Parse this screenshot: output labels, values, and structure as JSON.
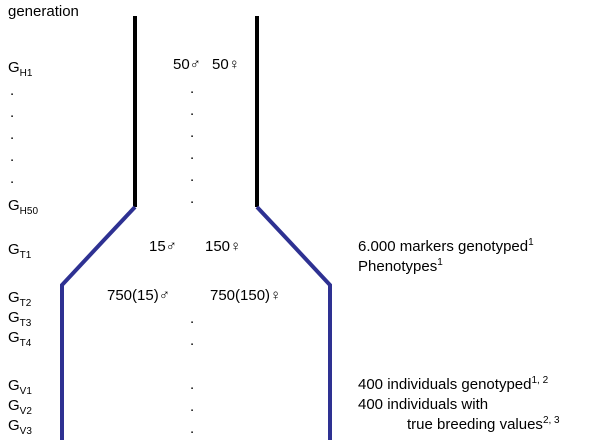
{
  "header": {
    "label": "generation"
  },
  "generations": {
    "h1": {
      "base": "G",
      "sub": "H1"
    },
    "h50": {
      "base": "G",
      "sub": "H50"
    },
    "t1": {
      "base": "G",
      "sub": "T1"
    },
    "t2": {
      "base": "G",
      "sub": "T2"
    },
    "t3": {
      "base": "G",
      "sub": "T3"
    },
    "t4": {
      "base": "G",
      "sub": "T4"
    },
    "v1": {
      "base": "G",
      "sub": "V1"
    },
    "v2": {
      "base": "G",
      "sub": "V2"
    },
    "v3": {
      "base": "G",
      "sub": "V3"
    }
  },
  "ellipsis_dot": ".",
  "population": {
    "h1": {
      "male": "50♂",
      "female": "50♀"
    },
    "t1": {
      "male": "15♂",
      "female": "150♀"
    },
    "t2": {
      "male": "750(15)♂",
      "female": "750(150)♀"
    }
  },
  "annotations": {
    "markers": {
      "text": "6.000 markers genotyped",
      "sup": "1"
    },
    "phenotypes": {
      "text": "Phenotypes",
      "sup": "1"
    },
    "genotyped": {
      "text": "400 individuals genotyped",
      "sup": "1, 2"
    },
    "with": {
      "text": "400 individuals with"
    },
    "true_bv": {
      "text": "true breeding values",
      "sup": "2, 3"
    }
  },
  "colors": {
    "historical_line": "#000000",
    "expansion_line": "#2e3192"
  }
}
